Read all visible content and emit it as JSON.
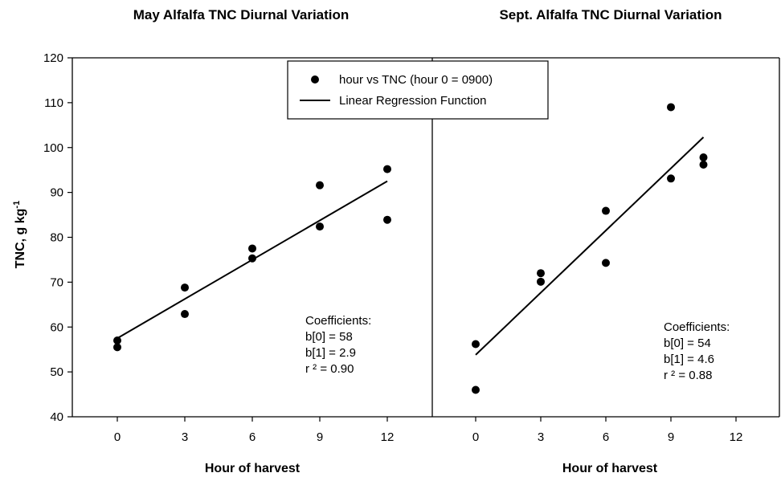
{
  "chart_data": [
    {
      "type": "scatter",
      "title": "May Alfalfa TNC Diurnal Variation",
      "xlabel": "Hour of harvest",
      "ylabel_main": "TNC, g kg",
      "ylabel_sup": "-1",
      "xlim": [
        -2,
        14
      ],
      "ylim": [
        40,
        120
      ],
      "xticks": [
        "0",
        "3",
        "6",
        "9",
        "12"
      ],
      "xtick_values": [
        0,
        3,
        6,
        9,
        12
      ],
      "yticks": [
        "40",
        "50",
        "60",
        "70",
        "80",
        "90",
        "100",
        "110",
        "120"
      ],
      "ytick_values": [
        40,
        50,
        60,
        70,
        80,
        90,
        100,
        110,
        120
      ],
      "series": [
        {
          "name": "hour vs TNC (hour 0 = 0900)",
          "points": [
            [
              0,
              57.0
            ],
            [
              0,
              55.5
            ],
            [
              3,
              68.8
            ],
            [
              3,
              62.9
            ],
            [
              6,
              77.5
            ],
            [
              6,
              75.3
            ],
            [
              9,
              91.6
            ],
            [
              9,
              82.4
            ],
            [
              12,
              95.2
            ],
            [
              12,
              83.9
            ]
          ]
        },
        {
          "name": "Linear Regression Function",
          "line": [
            [
              0,
              57.5
            ],
            [
              12,
              92.5
            ]
          ]
        }
      ],
      "coefficients": [
        "Coefficients:",
        "b[0] = 58",
        "b[1] = 2.9",
        "r ² = 0.90"
      ]
    },
    {
      "type": "scatter",
      "title": "Sept. Alfalfa TNC Diurnal Variation",
      "xlabel": "Hour of harvest",
      "xlim": [
        -2,
        14
      ],
      "ylim": [
        40,
        120
      ],
      "xticks": [
        "0",
        "3",
        "6",
        "9",
        "12"
      ],
      "xtick_values": [
        0,
        3,
        6,
        9,
        12
      ],
      "series": [
        {
          "name": "hour vs TNC (hour 0 = 0900)",
          "points": [
            [
              0,
              56.2
            ],
            [
              0,
              46.0
            ],
            [
              3,
              72.0
            ],
            [
              3,
              70.1
            ],
            [
              6,
              85.9
            ],
            [
              6,
              74.3
            ],
            [
              9,
              109.0
            ],
            [
              9,
              93.1
            ],
            [
              10.5,
              97.8
            ],
            [
              10.5,
              96.2
            ]
          ]
        },
        {
          "name": "Linear Regression Function",
          "line": [
            [
              0,
              53.8
            ],
            [
              10.5,
              102.3
            ]
          ]
        }
      ],
      "coefficients": [
        "Coefficients:",
        "b[0] = 54",
        "b[1] = 4.6",
        "r ² = 0.88"
      ]
    }
  ],
  "legend": {
    "placement": "top-center",
    "entries": [
      "hour vs TNC (hour 0 = 0900)",
      "Linear Regression Function"
    ]
  }
}
